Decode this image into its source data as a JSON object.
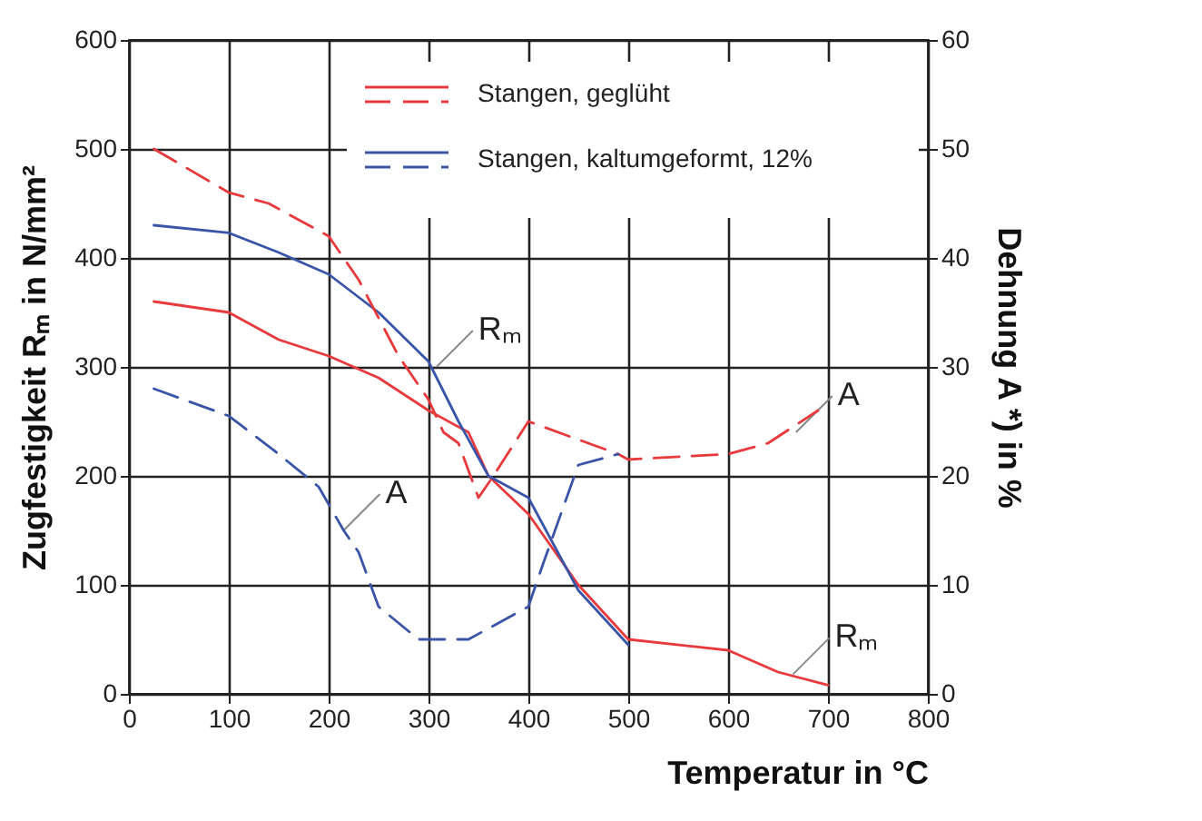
{
  "chart_data": {
    "type": "line",
    "xlabel": "Temperatur in °C",
    "ylabel": "Zugfestigkeit  Rₘ in N/mm²",
    "y2label": "Dehnung  A *) in %",
    "xlim": [
      0,
      800
    ],
    "xticks": [
      0,
      100,
      200,
      300,
      400,
      500,
      600,
      700,
      800
    ],
    "ylim": [
      0,
      600
    ],
    "yticks": [
      0,
      100,
      200,
      300,
      400,
      500,
      600
    ],
    "y2lim": [
      0,
      60
    ],
    "y2ticks": [
      0,
      10,
      20,
      30,
      40,
      50,
      60
    ],
    "grid": true,
    "legend": "top",
    "series": [
      {
        "name": "Stangen, geglüht",
        "color": "#e8393c",
        "line_style": "solid",
        "x": [
          25,
          100,
          150,
          200,
          250,
          300,
          340,
          360,
          400,
          450,
          500,
          600,
          650,
          700
        ],
        "values": [
          360,
          350,
          325,
          310,
          290,
          260,
          240,
          200,
          165,
          100,
          50,
          40,
          20,
          8
        ]
      },
      {
        "color": "#e8393c",
        "line_style": "dashed",
        "axis": "y2",
        "x": [
          25,
          100,
          140,
          200,
          230,
          270,
          300,
          315,
          330,
          350,
          365,
          400,
          490,
          500,
          600,
          640,
          690
        ],
        "values": [
          50,
          46,
          45,
          42,
          38,
          31,
          27,
          24,
          23,
          18,
          20,
          25,
          22,
          21.5,
          22,
          23,
          26
        ]
      },
      {
        "name": "Stangen, kaltumgeformt, 12%",
        "color": "#3a55a8",
        "line_style": "solid",
        "x": [
          25,
          100,
          150,
          200,
          250,
          300,
          330,
          360,
          400,
          450,
          500
        ],
        "values": [
          430,
          423,
          405,
          385,
          350,
          305,
          250,
          200,
          180,
          95,
          45
        ]
      },
      {
        "color": "#3a55a8",
        "line_style": "dashed",
        "axis": "y2",
        "x": [
          25,
          100,
          150,
          190,
          215,
          230,
          250,
          290,
          300,
          340,
          400,
          415,
          450,
          490
        ],
        "values": [
          28,
          25.5,
          22,
          19,
          15,
          13,
          8,
          5,
          5,
          5,
          8,
          12,
          21,
          22
        ]
      }
    ],
    "annotations": [
      {
        "text": "Rₘ",
        "x": 308,
        "y": 300
      },
      {
        "text": "A",
        "x": 215,
        "y": 150
      },
      {
        "text": "A",
        "x": 668,
        "y": 240
      },
      {
        "text": "Rₘ",
        "x": 665,
        "y": 18
      }
    ]
  }
}
